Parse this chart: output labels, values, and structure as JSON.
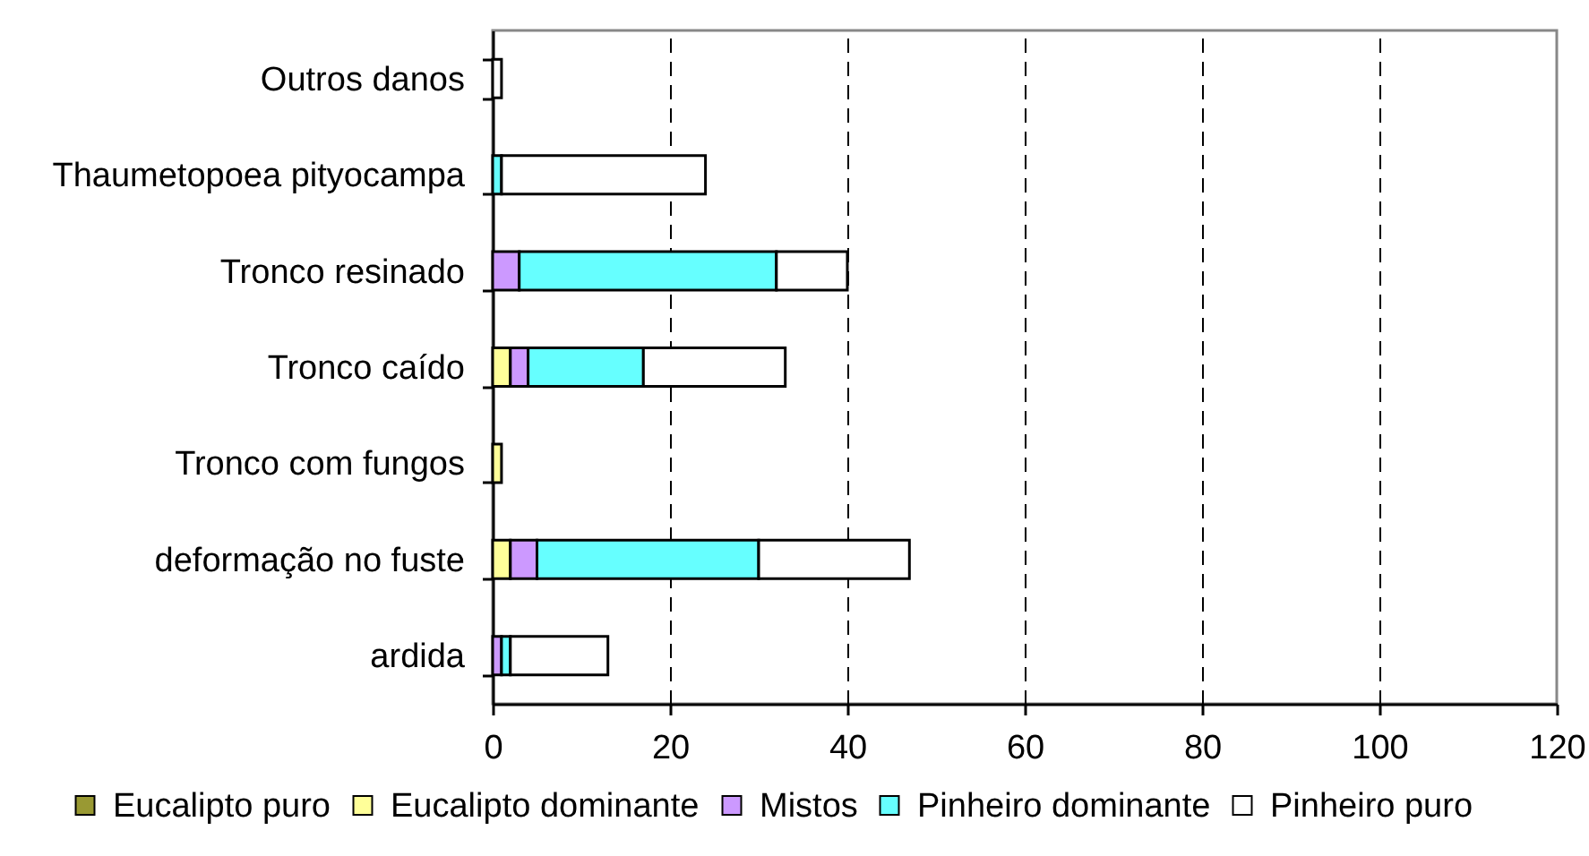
{
  "chart_data": {
    "type": "bar",
    "orientation": "horizontal",
    "stacked": true,
    "categories": [
      "Outros danos",
      "Thaumetopoea pityocampa",
      "Tronco resinado",
      "Tronco caído",
      "Tronco com fungos",
      "deformação no fuste",
      "ardida"
    ],
    "series": [
      {
        "name": "Eucalipto puro",
        "color": "#999933",
        "values": [
          null,
          null,
          null,
          null,
          null,
          null,
          null
        ]
      },
      {
        "name": "Eucalipto dominante",
        "color": "#ffff99",
        "values": [
          null,
          null,
          null,
          2,
          1,
          2,
          null
        ]
      },
      {
        "name": "Mistos",
        "color": "#cc99ff",
        "values": [
          null,
          null,
          3,
          2,
          null,
          3,
          1
        ]
      },
      {
        "name": "Pinheiro dominante",
        "color": "#66ffff",
        "values": [
          null,
          1,
          29,
          13,
          null,
          25,
          1
        ]
      },
      {
        "name": "Pinheiro puro",
        "color": "#ffffff",
        "values": [
          1,
          23,
          8,
          16,
          null,
          17,
          11
        ]
      }
    ],
    "xlim": [
      0,
      120
    ],
    "xticks": [
      0,
      20,
      40,
      60,
      80,
      100,
      120
    ],
    "grid": "x",
    "legend": "bottom"
  }
}
